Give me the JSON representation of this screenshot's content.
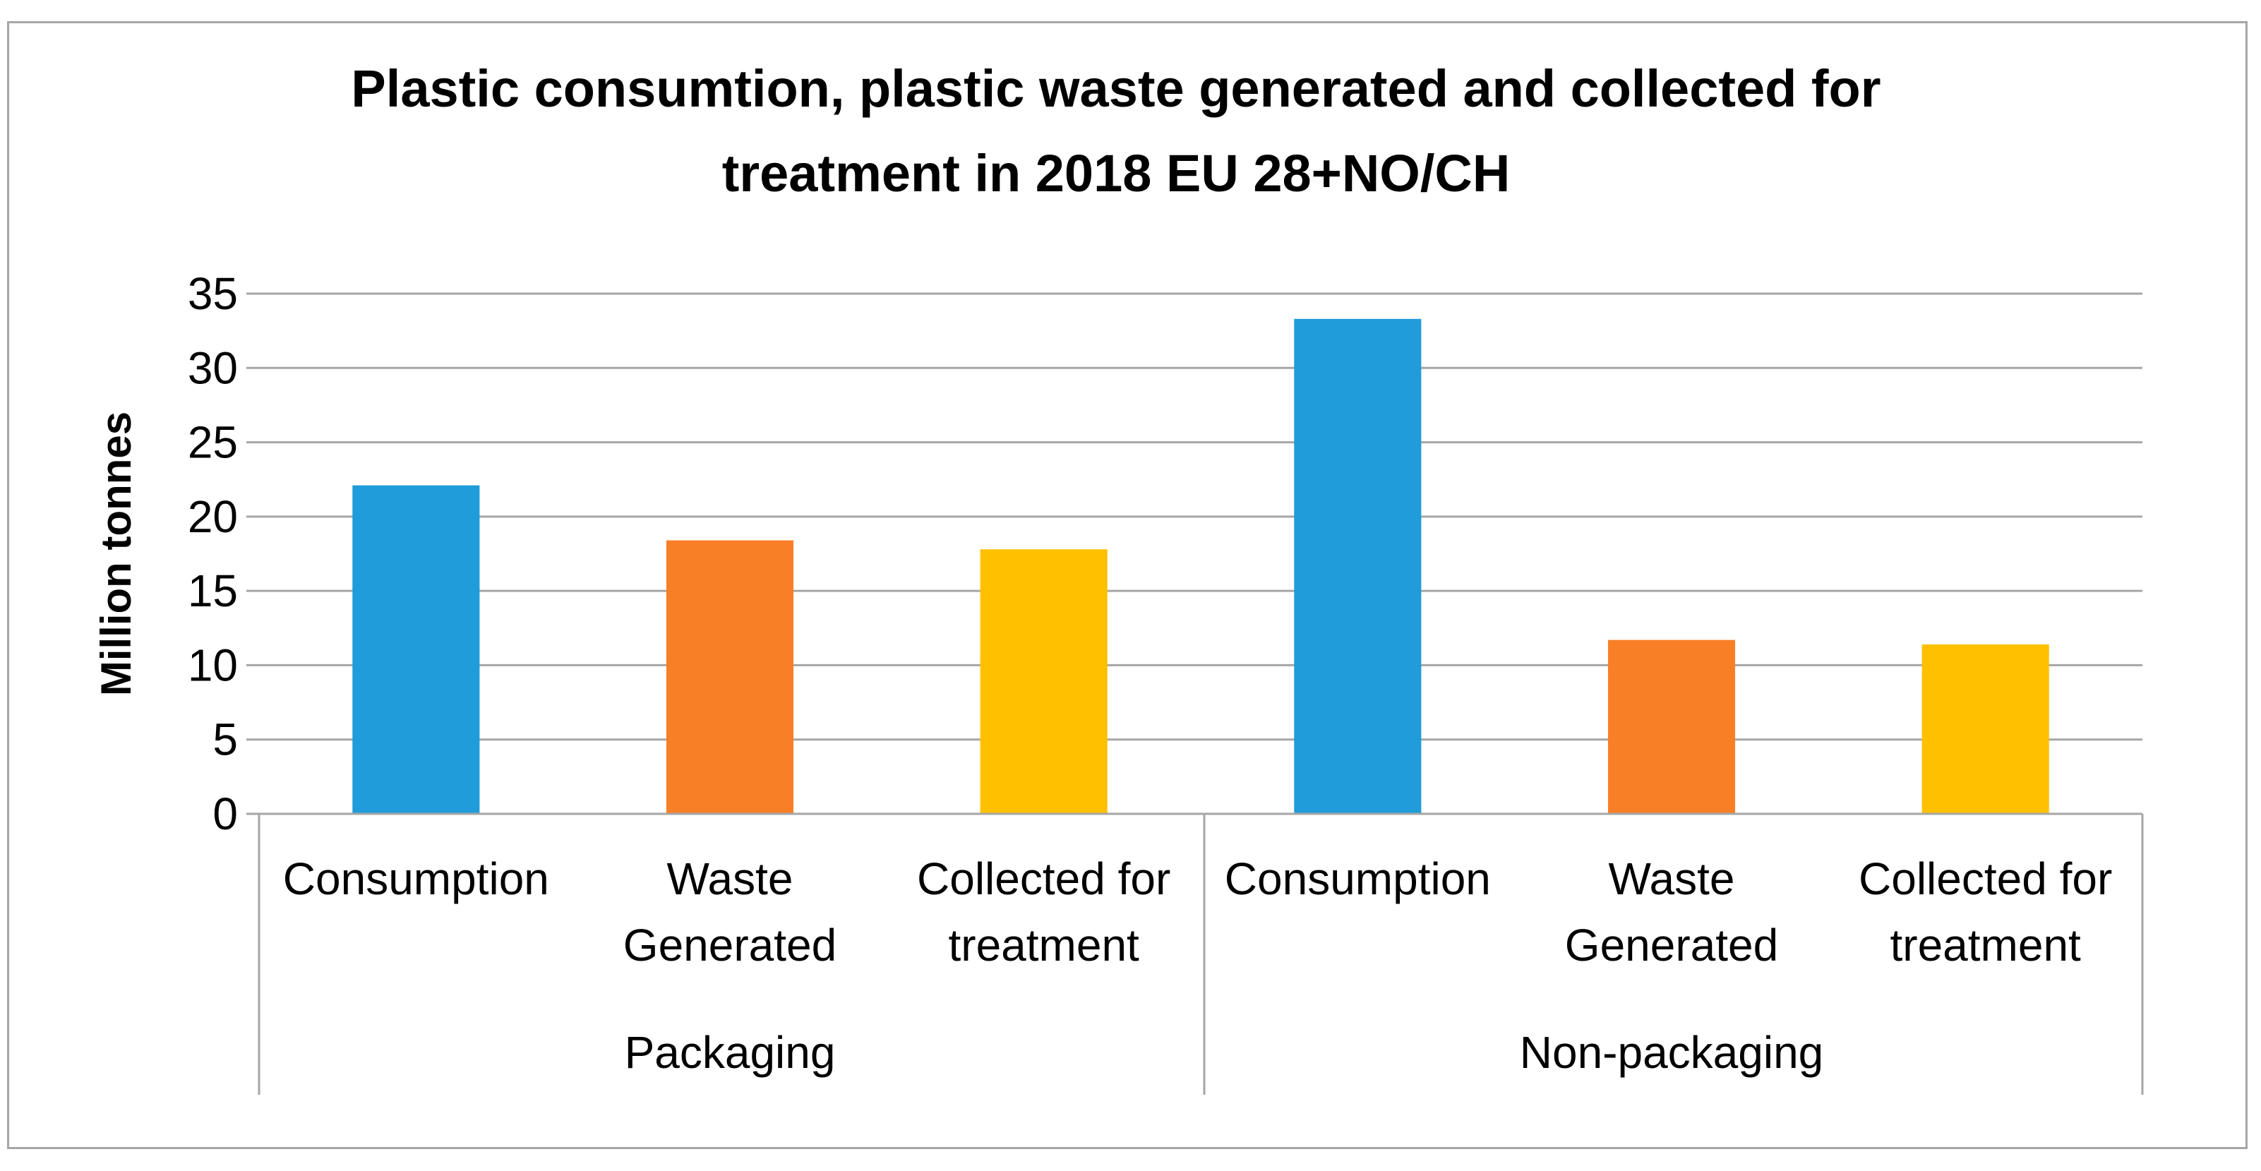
{
  "chart_data": {
    "type": "bar",
    "title_lines": [
      "Plastic consumtion, plastic waste generated and collected for",
      "treatment in 2018 EU 28+NO/CH"
    ],
    "ylabel": "Million tonnes",
    "xlabel": "",
    "ylim": [
      0,
      35
    ],
    "yticks": [
      0,
      5,
      10,
      15,
      20,
      25,
      30,
      35
    ],
    "grid": true,
    "legend": "none",
    "groups": [
      {
        "name": "Packaging",
        "categories": [
          {
            "label_lines": [
              "Consumption"
            ],
            "value": 22.1,
            "color": "#1f9cd9"
          },
          {
            "label_lines": [
              "Waste",
              "Generated"
            ],
            "value": 18.4,
            "color": "#f97f27"
          },
          {
            "label_lines": [
              "Collected for",
              "treatment"
            ],
            "value": 17.8,
            "color": "#ffc000"
          }
        ]
      },
      {
        "name": "Non-packaging",
        "categories": [
          {
            "label_lines": [
              "Consumption"
            ],
            "value": 33.3,
            "color": "#1f9cd9"
          },
          {
            "label_lines": [
              "Waste",
              "Generated"
            ],
            "value": 11.7,
            "color": "#f97f27"
          },
          {
            "label_lines": [
              "Collected for",
              "treatment"
            ],
            "value": 11.4,
            "color": "#ffc000"
          }
        ]
      }
    ]
  }
}
